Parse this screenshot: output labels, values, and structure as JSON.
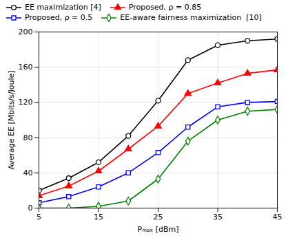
{
  "chart_data": {
    "type": "line",
    "x": [
      5,
      10,
      15,
      20,
      25,
      30,
      35,
      40,
      45
    ],
    "series": [
      {
        "name": "EE maximization [4]",
        "color": "#000000",
        "marker": "circle",
        "values": [
          20,
          34,
          52,
          82,
          122,
          168,
          185,
          190,
          192
        ]
      },
      {
        "name": "Proposed, ρ = 0.85",
        "color": "#ff0000",
        "marker": "triangle",
        "values": [
          14,
          25,
          42,
          67,
          93,
          130,
          142,
          153,
          157
        ]
      },
      {
        "name": "Proposed, ρ = 0.5",
        "color": "#0000ff",
        "marker": "square",
        "values": [
          6,
          13,
          24,
          40,
          63,
          92,
          115,
          120,
          121
        ]
      },
      {
        "name": "EE-aware fairness maximization  [10]",
        "color": "#008000",
        "marker": "diamond",
        "values": [
          0,
          0,
          2,
          8,
          33,
          76,
          100,
          110,
          112
        ]
      }
    ],
    "xlabel": "Pₘₐₓ [dBm]",
    "ylabel": "Average EE [Mbits/s/Joule]",
    "xlim": [
      5,
      45
    ],
    "ylim": [
      0,
      200
    ],
    "xticks": [
      5,
      15,
      25,
      35,
      45
    ],
    "yticks": [
      0,
      40,
      80,
      120,
      160,
      200
    ],
    "grid": true,
    "legend": "upper left"
  }
}
